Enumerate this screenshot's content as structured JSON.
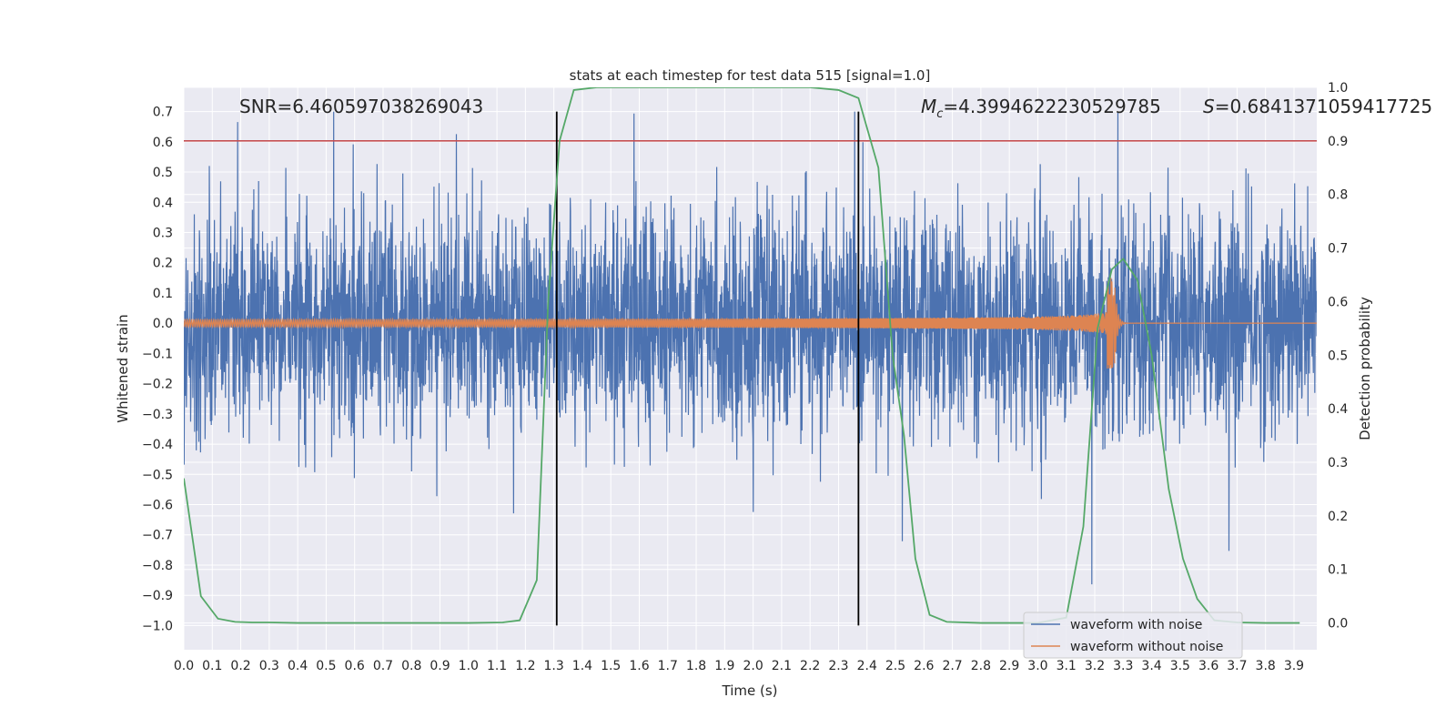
{
  "chart_data": {
    "type": "line",
    "title": "stats at each timestep for test data 515 [signal=1.0]",
    "xlabel": "Time (s)",
    "ylabel_left": "Whitened strain",
    "ylabel_right": "Detection probability",
    "xlim": [
      0.0,
      3.98
    ],
    "ylim_left": [
      -1.08,
      0.78
    ],
    "ylim_right": [
      -0.05,
      1.0
    ],
    "x_ticks": [
      0.0,
      0.1,
      0.2,
      0.3,
      0.4,
      0.5,
      0.6,
      0.7,
      0.8,
      0.9,
      1.0,
      1.1,
      1.2,
      1.3,
      1.4,
      1.5,
      1.6,
      1.7,
      1.8,
      1.9,
      2.0,
      2.1,
      2.2,
      2.3,
      2.4,
      2.5,
      2.6,
      2.7,
      2.8,
      2.9,
      3.0,
      3.1,
      3.2,
      3.3,
      3.4,
      3.5,
      3.6,
      3.7,
      3.8,
      3.9
    ],
    "x_tick_labels": [
      "0.0",
      "0.1",
      "0.2",
      "0.3",
      "0.4",
      "0.5",
      "0.6",
      "0.7",
      "0.8",
      "0.9",
      "1.0",
      "1.1",
      "1.2",
      "1.3",
      "1.4",
      "1.5",
      "1.6",
      "1.7",
      "1.8",
      "1.9",
      "2.0",
      "2.1",
      "2.2",
      "2.3",
      "2.4",
      "2.5",
      "2.6",
      "2.7",
      "2.8",
      "2.9",
      "3.0",
      "3.1",
      "3.2",
      "3.3",
      "3.4",
      "3.5",
      "3.6",
      "3.7",
      "3.8",
      "3.9"
    ],
    "y_left_ticks": [
      0.7,
      0.6,
      0.5,
      0.4,
      0.3,
      0.2,
      0.1,
      0.0,
      -0.1,
      -0.2,
      -0.3,
      -0.4,
      -0.5,
      -0.6,
      -0.7,
      -0.8,
      -0.9,
      -1.0
    ],
    "y_left_tick_labels": [
      "0.7",
      "0.6",
      "0.5",
      "0.4",
      "0.3",
      "0.2",
      "0.1",
      "0.0",
      "−0.1",
      "−0.2",
      "−0.3",
      "−0.4",
      "−0.5",
      "−0.6",
      "−0.7",
      "−0.8",
      "−0.9",
      "−1.0"
    ],
    "y_right_ticks": [
      1.0,
      0.9,
      0.8,
      0.7,
      0.6,
      0.5,
      0.4,
      0.3,
      0.2,
      0.1,
      0.0
    ],
    "y_right_tick_labels": [
      "1.0",
      "0.9",
      "0.8",
      "0.7",
      "0.6",
      "0.5",
      "0.4",
      "0.3",
      "0.2",
      "0.1",
      "0.0"
    ],
    "annotations": {
      "snr": "SNR=6.460597038269043",
      "mc_symbol": "M",
      "mc_sub": "c",
      "mc_value": "=4.3994622230529785",
      "s_symbol": "S",
      "s_value": "=0.6841371059417725"
    },
    "series": [
      {
        "name": "waveform with noise",
        "color": "#4c72b0",
        "axis": "left",
        "kind": "noise",
        "amplitude_rms": 0.18,
        "range": [
          -1.0,
          0.7
        ]
      },
      {
        "name": "waveform without noise",
        "color": "#dd8452",
        "axis": "left",
        "kind": "chirp",
        "merger_time": 3.27,
        "peak": 0.15
      },
      {
        "name": "detection probability",
        "color": "#55a868",
        "axis": "right",
        "x": [
          0.0,
          0.06,
          0.12,
          0.18,
          0.24,
          0.3,
          0.4,
          0.6,
          0.8,
          1.0,
          1.12,
          1.18,
          1.24,
          1.28,
          1.32,
          1.37,
          1.45,
          1.6,
          1.8,
          2.0,
          2.2,
          2.3,
          2.37,
          2.44,
          2.49,
          2.53,
          2.57,
          2.62,
          2.68,
          2.8,
          3.0,
          3.1,
          3.16,
          3.21,
          3.26,
          3.3,
          3.35,
          3.4,
          3.46,
          3.51,
          3.56,
          3.62,
          3.7,
          3.8,
          3.92
        ],
        "y": [
          0.27,
          0.05,
          0.008,
          0.002,
          0.001,
          0.001,
          0.0,
          0.0,
          0.0,
          0.0,
          0.001,
          0.005,
          0.08,
          0.6,
          0.9,
          0.995,
          1.0,
          1.0,
          1.0,
          1.0,
          1.0,
          0.995,
          0.98,
          0.85,
          0.5,
          0.35,
          0.12,
          0.015,
          0.002,
          0.0,
          0.0,
          0.01,
          0.18,
          0.55,
          0.66,
          0.68,
          0.64,
          0.5,
          0.25,
          0.12,
          0.045,
          0.005,
          0.001,
          0.0,
          0.0
        ]
      }
    ],
    "threshold": {
      "axis": "right",
      "value": 0.9,
      "color": "#c44e52"
    },
    "vertical_lines": [
      1.31,
      2.37
    ],
    "vertical_line_range": [
      -1.0,
      0.7
    ],
    "legend": {
      "position": "lower-right",
      "entries": [
        "waveform with noise",
        "waveform without noise"
      ]
    }
  }
}
